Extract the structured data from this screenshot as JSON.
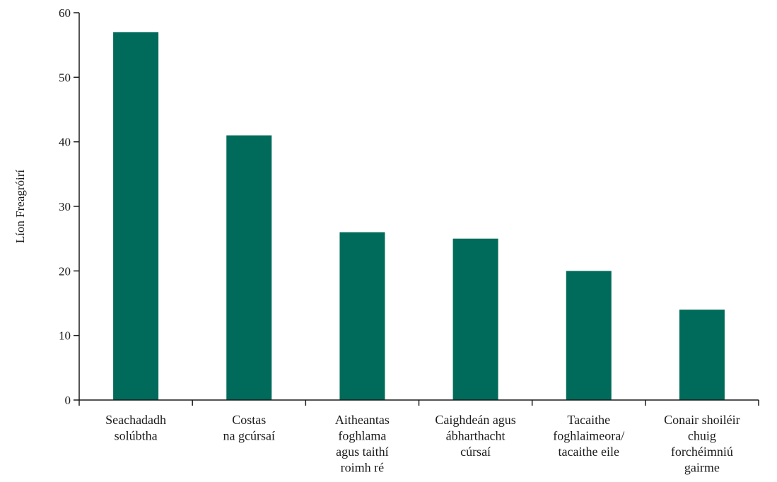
{
  "chart_data": {
    "type": "bar",
    "title": "",
    "xlabel": "",
    "ylabel": "Líon Freagróirí",
    "ylim": [
      0,
      60
    ],
    "yticks": [
      0,
      10,
      20,
      30,
      40,
      50,
      60
    ],
    "grid": false,
    "bar_color": "#006b5a",
    "axis_color": "#1a1a1a",
    "categories": [
      [
        "Seachadadh",
        "solúbtha"
      ],
      [
        "Costas",
        "na gcúrsaí"
      ],
      [
        "Aitheantas",
        "foghlama",
        "agus taithí",
        "roimh ré"
      ],
      [
        "Caighdeán agus",
        "ábharthacht",
        "cúrsaí"
      ],
      [
        "Tacaithe",
        "foghlaimeora/",
        "tacaithe eile"
      ],
      [
        "Conair shoiléir",
        "chuig",
        "forchéimniú",
        "gairme"
      ]
    ],
    "values": [
      57,
      41,
      26,
      25,
      20,
      14
    ]
  }
}
